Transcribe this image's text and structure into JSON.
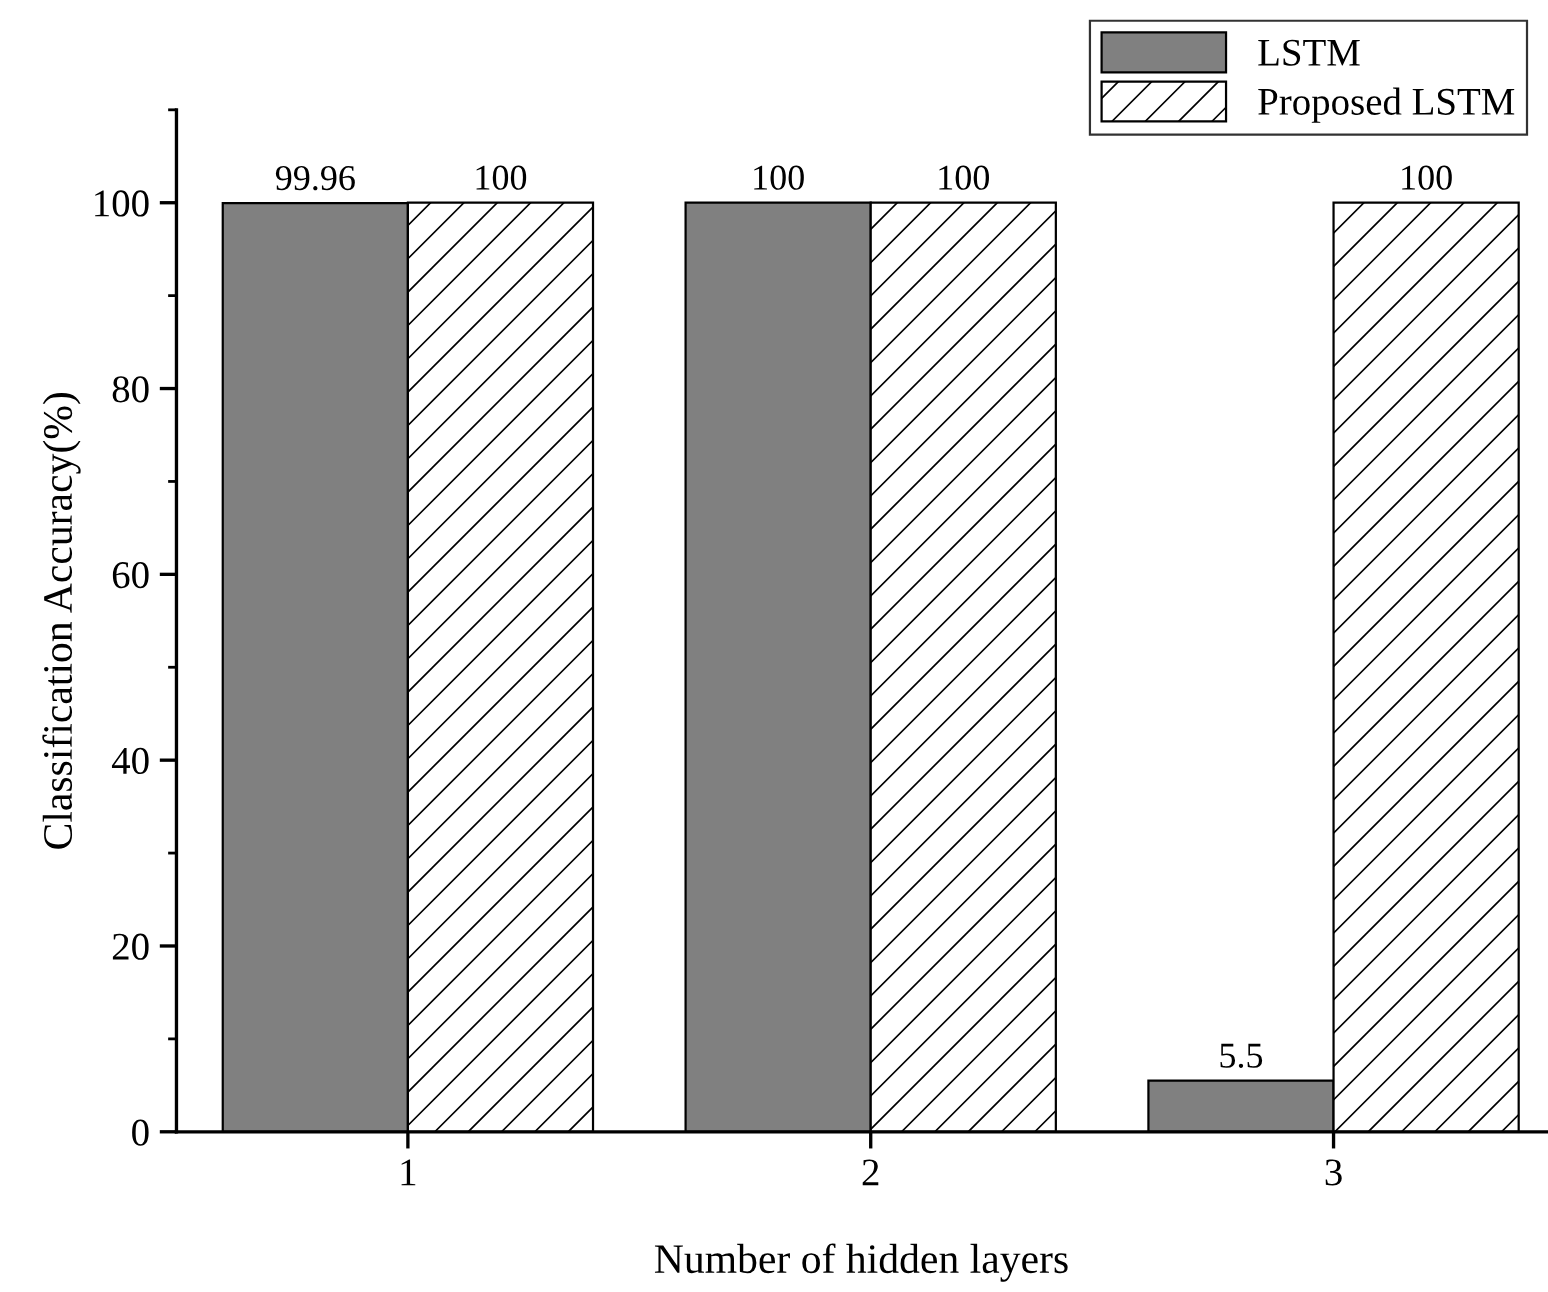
{
  "chart_data": {
    "type": "bar",
    "xlabel": "Number of hidden layers",
    "ylabel": "Classification Accuracy(%)",
    "categories": [
      "1",
      "2",
      "3"
    ],
    "series": [
      {
        "name": "LSTM",
        "color": "#808080",
        "values": [
          99.96,
          100,
          5.5
        ]
      },
      {
        "name": "Proposed LSTM",
        "color": "#000000",
        "values": [
          100,
          100,
          100
        ]
      }
    ],
    "ylim": [
      0,
      110
    ],
    "yticks": [
      0,
      20,
      40,
      60,
      80,
      100
    ],
    "data_labels": true,
    "legend": "top right",
    "grid": false
  }
}
